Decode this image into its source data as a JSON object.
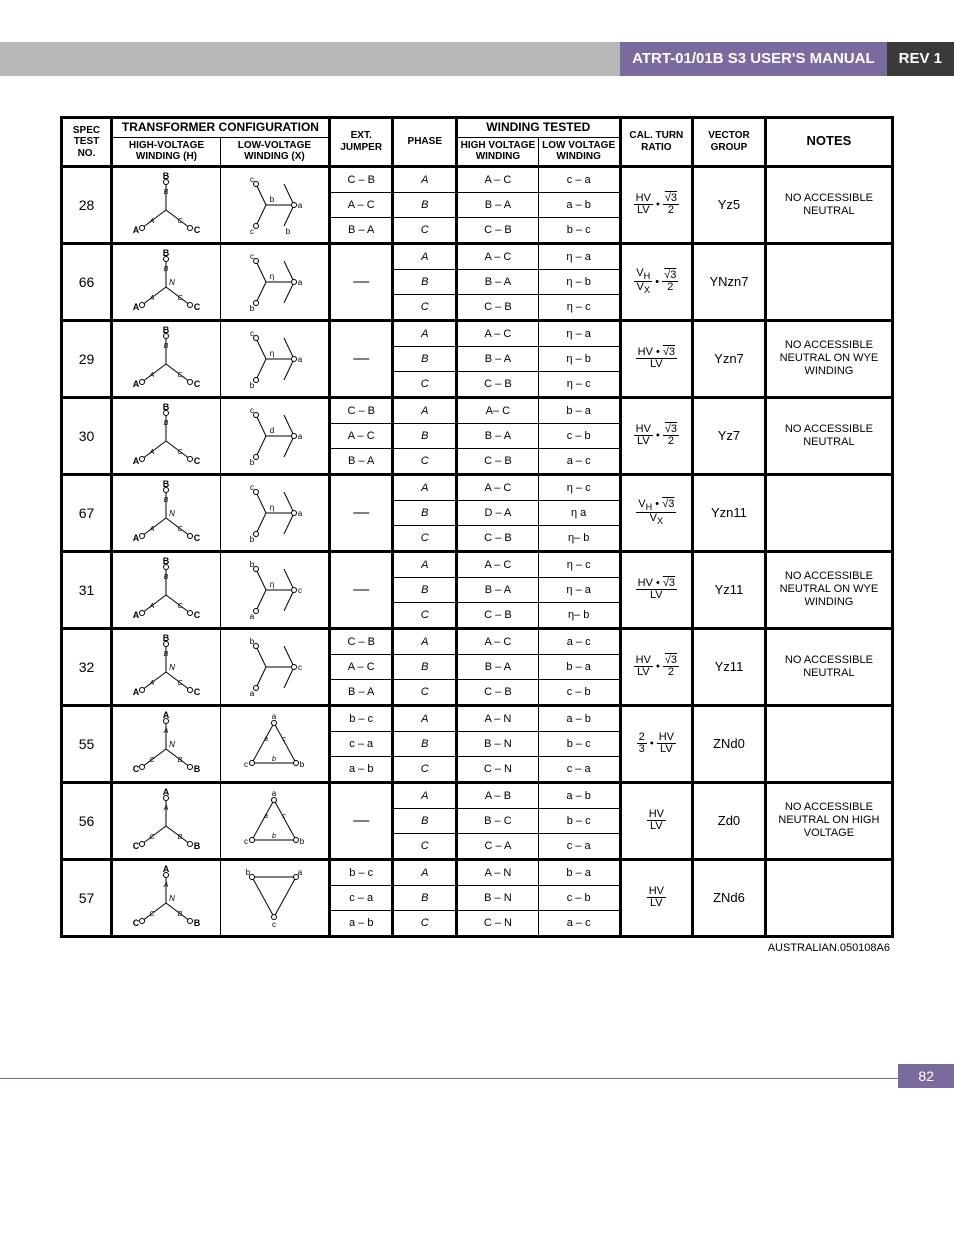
{
  "header": {
    "title": "ATRT-01/01B S3 USER'S MANUAL",
    "rev": "REV 1"
  },
  "table": {
    "group_headers": {
      "config": "TRANSFORMER CONFIGURATION",
      "winding_tested": "WINDING TESTED"
    },
    "columns": {
      "spec": "SPEC TEST NO.",
      "hv": "HIGH-VOLTAGE WINDING (H)",
      "lv": "LOW-VOLTAGE WINDING (X)",
      "jumper": "EXT. JUMPER",
      "phase": "PHASE",
      "hvw": "HIGH VOLTAGE WINDING",
      "lvw": "LOW VOLTAGE WINDING",
      "cal": "CAL. TURN RATIO",
      "vg": "VECTOR GROUP",
      "notes": "NOTES"
    },
    "rows": [
      {
        "spec": "28",
        "hv_diagram": "wye_ABC",
        "lv_diagram": "zig_abc_1",
        "jumper": [
          "C – B",
          "A – C",
          "B – A"
        ],
        "phase": [
          "A",
          "B",
          "C"
        ],
        "hvw": [
          "A – C",
          "B – A",
          "C – B"
        ],
        "lvw": [
          "c – a",
          "a – b",
          "b – c"
        ],
        "ratio_html": "<span class='frac'><span class='n'>HV</span><span class='d'>LV</span></span> • <span class='frac'><span class='n'><span class='sqrt'>√3</span></span><span class='d'>2</span></span>",
        "vg": "Yz5",
        "notes": "NO ACCESSIBLE NEUTRAL"
      },
      {
        "spec": "66",
        "hv_diagram": "wye_ABC_N",
        "lv_diagram": "zig_eta_ca",
        "jumper": [
          "—",
          "",
          ""
        ],
        "phase": [
          "A",
          "B",
          "C"
        ],
        "hvw": [
          "A – C",
          "B – A",
          "C – B"
        ],
        "lvw": [
          "η – a",
          "η – b",
          "η – c"
        ],
        "ratio_html": "<span class='frac'><span class='n'>V<sub>H</sub></span><span class='d'>V<sub>X</sub></span></span> • <span class='frac'><span class='n'><span class='sqrt'>√3</span></span><span class='d'>2</span></span>",
        "vg": "YNzn7",
        "notes": ""
      },
      {
        "spec": "29",
        "hv_diagram": "wye_ABC",
        "lv_diagram": "zig_eta_ca",
        "jumper": [
          "—",
          "",
          ""
        ],
        "phase": [
          "A",
          "B",
          "C"
        ],
        "hvw": [
          "A – C",
          "B – A",
          "C – B"
        ],
        "lvw": [
          "η – a",
          "η – b",
          "η – c"
        ],
        "ratio_html": "<span class='frac'><span class='n'>HV • <span class='sqrt'>√3</span></span><span class='d'>LV</span></span>",
        "vg": "Yzn7",
        "notes": "NO ACCESSIBLE NEUTRAL ON WYE WINDING"
      },
      {
        "spec": "30",
        "hv_diagram": "wye_ABC",
        "lv_diagram": "zig_abc_2",
        "jumper": [
          "C – B",
          "A – C",
          "B – A"
        ],
        "phase": [
          "A",
          "B",
          "C"
        ],
        "hvw": [
          "A– C",
          "B – A",
          "C – B"
        ],
        "lvw": [
          "b – a",
          "c – b",
          "a – c"
        ],
        "ratio_html": "<span class='frac'><span class='n'>HV</span><span class='d'>LV</span></span> • <span class='frac'><span class='n'><span class='sqrt'>√3</span></span><span class='d'>2</span></span>",
        "vg": "Yz7",
        "notes": "NO ACCESSIBLE NEUTRAL"
      },
      {
        "spec": "67",
        "hv_diagram": "wye_ABC_N",
        "lv_diagram": "zig_eta_cb",
        "jumper": [
          "—",
          "",
          ""
        ],
        "phase": [
          "A",
          "B",
          "C"
        ],
        "hvw": [
          "A – C",
          "D – A",
          "C – B"
        ],
        "lvw": [
          "η – c",
          "η   a",
          "η– b"
        ],
        "ratio_html": "<span class='frac'><span class='n'>V<sub>H</sub> • <span class='sqrt'>√3</span></span><span class='d'>V<sub>X</sub></span></span>",
        "vg": "Yzn11",
        "notes": ""
      },
      {
        "spec": "31",
        "hv_diagram": "wye_ABC",
        "lv_diagram": "zig_eta_bc",
        "jumper": [
          "—",
          "",
          ""
        ],
        "phase": [
          "A",
          "B",
          "C"
        ],
        "hvw": [
          "A – C",
          "B – A",
          "C – B"
        ],
        "lvw": [
          "η – c",
          "η – a",
          "η– b"
        ],
        "ratio_html": "<span class='frac'><span class='n'>HV • <span class='sqrt'>√3</span></span><span class='d'>LV</span></span>",
        "vg": "Yz11",
        "notes": "NO ACCESSIBLE NEUTRAL ON WYE WINDING"
      },
      {
        "spec": "32",
        "hv_diagram": "wye_ABC_N",
        "lv_diagram": "zig_abc_3",
        "jumper": [
          "C – B",
          "A – C",
          "B – A"
        ],
        "phase": [
          "A",
          "B",
          "C"
        ],
        "hvw": [
          "A – C",
          "B – A",
          "C – B"
        ],
        "lvw": [
          "a – c",
          "b – a",
          "c – b"
        ],
        "ratio_html": "<span class='frac'><span class='n'>HV</span><span class='d'>LV</span></span> • <span class='frac'><span class='n'><span class='sqrt'>√3</span></span><span class='d'>2</span></span>",
        "vg": "Yz11",
        "notes": "NO ACCESSIBLE NEUTRAL"
      },
      {
        "spec": "55",
        "hv_diagram": "wye_A_CB_N",
        "lv_diagram": "delta_abc",
        "jumper": [
          "b – c",
          "c – a",
          "a – b"
        ],
        "phase": [
          "A",
          "B",
          "C"
        ],
        "hvw": [
          "A – N",
          "B – N",
          "C – N"
        ],
        "lvw": [
          "a – b",
          "b – c",
          "c – a"
        ],
        "ratio_html": "<span class='frac'><span class='n'>2</span><span class='d'>3</span></span> • <span class='frac'><span class='n'>HV</span><span class='d'>LV</span></span>",
        "vg": "ZNd0",
        "notes": ""
      },
      {
        "spec": "56",
        "hv_diagram": "wye_A_CB",
        "lv_diagram": "delta_abc",
        "jumper": [
          "—",
          "",
          ""
        ],
        "phase": [
          "A",
          "B",
          "C"
        ],
        "hvw": [
          "A – B",
          "B – C",
          "C – A"
        ],
        "lvw": [
          "a – b",
          "b – c",
          "c – a"
        ],
        "ratio_html": "<span class='frac'><span class='n'>HV</span><span class='d'>LV</span></span>",
        "vg": "Zd0",
        "notes": "NO ACCESSIBLE NEUTRAL ON HIGH VOLTAGE"
      },
      {
        "spec": "57",
        "hv_diagram": "wye_A_CB_N",
        "lv_diagram": "delta_bca",
        "jumper": [
          "b – c",
          "c – a",
          "a – b"
        ],
        "phase": [
          "A",
          "B",
          "C"
        ],
        "hvw": [
          "A – N",
          "B – N",
          "C – N"
        ],
        "lvw": [
          "b – a",
          "c – b",
          "a – c"
        ],
        "ratio_html": "<span class='frac'><span class='n'>HV</span><span class='d'>LV</span></span>",
        "vg": "ZNd6",
        "notes": ""
      }
    ]
  },
  "footer_note": "AUSTRALIAN.050108A6",
  "page_number": "82",
  "style": {
    "header_purple": "#7b6a9e",
    "header_gray": "#b8b8b8",
    "header_dark": "#3a3a3a",
    "border_color": "#000000",
    "page_bg": "#ffffff"
  }
}
